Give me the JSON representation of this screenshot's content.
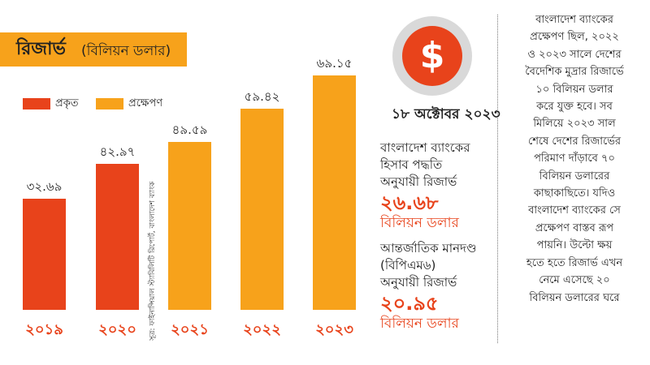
{
  "header": {
    "title_main": "রিজার্ভ",
    "title_unit": "(বিলিয়ন ডলার)"
  },
  "legend": {
    "actual_label": "প্রকৃত",
    "forecast_label": "প্রক্ষেপণ"
  },
  "source": "সূত্র: ফাইনান্সিয়াল স্ট্যাবিলিটি রিপোর্ট, বাংলাদেশ ব্যাংক",
  "colors": {
    "actual": "#e8431b",
    "forecast": "#f7a21b",
    "title_bar": "#f7a21b",
    "accent": "#e8431b"
  },
  "chart_data": {
    "type": "bar",
    "categories": [
      "২০১৯",
      "২০২০",
      "২০২১",
      "২০২২",
      "২০২৩"
    ],
    "values": [
      32.69,
      42.97,
      49.59,
      59.42,
      69.15
    ],
    "value_labels": [
      "৩২.৬৯",
      "৪২.৯৭",
      "৪৯.৫৯",
      "৫৯.৪২",
      "৬৯.১৫"
    ],
    "kinds": [
      "actual",
      "actual",
      "forecast",
      "forecast",
      "forecast"
    ],
    "series": [
      {
        "name": "প্রকৃত",
        "values": [
          32.69,
          42.97,
          null,
          null,
          null
        ]
      },
      {
        "name": "প্রক্ষেপণ",
        "values": [
          null,
          null,
          49.59,
          59.42,
          69.15
        ]
      }
    ],
    "title": "রিজার্ভ (বিলিয়ন ডলার)",
    "xlabel": "",
    "ylabel": "",
    "ylim": [
      0,
      70
    ],
    "grid": false,
    "legend_position": "top-left"
  },
  "icon": "dollar-icon",
  "panel": {
    "date": "১৮ অক্টোবর ২০২৩",
    "block1_lines": [
      "বাংলাদেশ ব্যাংকের",
      "হিসাব পদ্ধতি",
      "অনুযায়ী রিজার্ভ"
    ],
    "block1_value": "২৬.৬৮",
    "block1_unit": "বিলিয়ন ডলার",
    "block2_lines": [
      "আন্তর্জাতিক মানদণ্ড",
      "(বিপিএম৬)",
      "অনুযায়ী রিজার্ভ"
    ],
    "block2_value": "২০.৯৫",
    "block2_unit": "বিলিয়ন ডলার"
  },
  "note_lines": [
    "বাংলাদেশ ব্যাংকের",
    "প্রক্ষেপণ ছিল, ২০২২",
    "ও ২০২৩ সালে দেশের",
    "বৈদেশিক মুদ্রার রিজার্ভে",
    "১০ বিলিয়ন ডলার",
    "করে যুক্ত হবে। সব",
    "মিলিয়ে ২০২৩ সাল",
    "শেষে দেশের রিজার্ভের",
    "পরিমাণ দাঁড়াবে ৭০",
    "বিলিয়ন ডলারের",
    "কাছাকাছিতে। যদিও",
    "বাংলাদেশ ব্যাংকের সে",
    "প্রক্ষেপণ বাস্তব রূপ",
    "পায়নি। উল্টো ক্ষয়",
    "হতে হতে রিজার্ভ এখন",
    "নেমে এসেছে ২০",
    "বিলিয়ন ডলারের ঘরে"
  ]
}
